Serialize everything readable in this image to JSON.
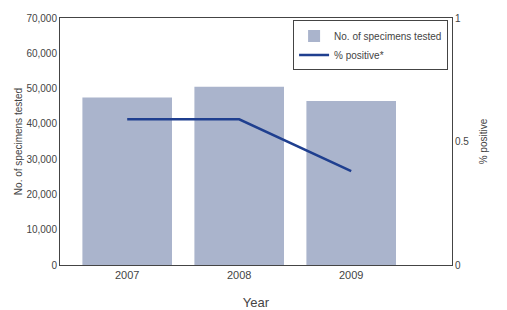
{
  "chart_data": {
    "type": "bar",
    "x": [
      2007,
      2008,
      2009
    ],
    "xlim": [
      2006.4,
      2009.9
    ],
    "xticks": [
      2007,
      2008,
      2009
    ],
    "xlabel": "Year",
    "ylabel": "No. of specimens tested",
    "y2label": "% positive",
    "ylim": [
      0,
      70000
    ],
    "yticks": [
      0,
      {
        "value": 10000,
        "label": "10,000"
      },
      {
        "value": 20000,
        "label": "20,000"
      },
      {
        "value": 30000,
        "label": "30,000"
      },
      {
        "value": 40000,
        "label": "40,000"
      },
      {
        "value": 50000,
        "label": "50,000"
      },
      {
        "value": 60000,
        "label": "60,000"
      },
      {
        "value": 70000,
        "label": "70,000"
      }
    ],
    "y2lim": [
      0,
      1
    ],
    "y2ticks": [
      0,
      0.5,
      1
    ],
    "grid": false,
    "legend": "upper right",
    "series": [
      {
        "name": "No. of specimens tested",
        "type": "bar",
        "color": "#aab4cc",
        "values": [
          47500,
          50500,
          46500
        ]
      },
      {
        "name": "% positive*",
        "type": "line",
        "color": "#1f3f8f",
        "axis": "y2",
        "values": [
          0.59,
          0.59,
          0.38
        ]
      }
    ]
  }
}
